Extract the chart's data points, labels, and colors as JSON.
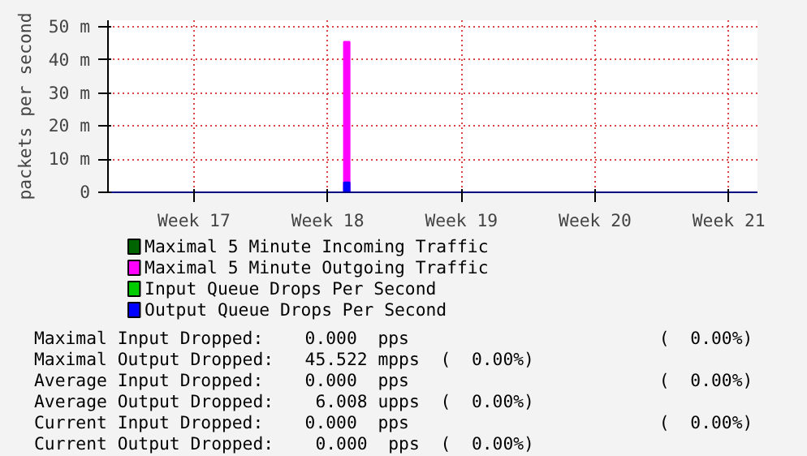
{
  "chart_data": {
    "type": "bar",
    "ylabel": "packets per second",
    "categories": [
      null,
      null,
      null,
      null,
      "Week 17",
      null,
      null,
      null,
      null,
      null,
      null,
      "Week 18",
      null,
      null,
      null,
      null,
      null,
      null,
      "Week 19",
      null,
      null,
      null,
      null,
      null,
      null,
      "Week 20",
      null,
      null,
      null,
      null,
      null,
      null,
      "Week 21",
      null
    ],
    "series": [
      {
        "name": "Maximal 5 Minute Incoming Traffic",
        "color": "#006400",
        "values": [
          0,
          0,
          0,
          0,
          0,
          0,
          0,
          0,
          0,
          0,
          0,
          0,
          0,
          0,
          0,
          0,
          0,
          0,
          0,
          0,
          0,
          0,
          0,
          0,
          0,
          0,
          0,
          0,
          0,
          0,
          0,
          0,
          0,
          0
        ]
      },
      {
        "name": "Maximal 5 Minute Outgoing Traffic",
        "color": "#ff00ff",
        "values": [
          0,
          0,
          0,
          0,
          0,
          0,
          0,
          0,
          0,
          0,
          0,
          0,
          45.5,
          0,
          0,
          0,
          0,
          0,
          0,
          0,
          0,
          0,
          0,
          0,
          0,
          0,
          0,
          0,
          0,
          0,
          0,
          0,
          0,
          0
        ]
      },
      {
        "name": "Input Queue Drops Per Second",
        "color": "#00cc00",
        "values": [
          0,
          0,
          0,
          0,
          0,
          0,
          0,
          0,
          0,
          0,
          0,
          0,
          0,
          0,
          0,
          0,
          0,
          0,
          0,
          0,
          0,
          0,
          0,
          0,
          0,
          0,
          0,
          0,
          0,
          0,
          0,
          0,
          0,
          0
        ]
      },
      {
        "name": "Output Queue Drops Per Second",
        "color": "#0000ff",
        "values": [
          0,
          0,
          0,
          0,
          0,
          0,
          0,
          0,
          0,
          0,
          0,
          0,
          3,
          0,
          0,
          0,
          0,
          0,
          0,
          0,
          0,
          0,
          0,
          0,
          0,
          0,
          0,
          0,
          0,
          0,
          0,
          0,
          0,
          0
        ]
      }
    ],
    "ylim": [
      0,
      52
    ],
    "yticks": [
      0,
      {
        "value": 10,
        "label": "10 m"
      },
      {
        "value": 20,
        "label": "20 m"
      },
      {
        "value": 30,
        "label": "30 m"
      },
      {
        "value": 40,
        "label": "40 m"
      },
      {
        "value": 50,
        "label": "50 m"
      }
    ],
    "grid": true,
    "legend": "bottom",
    "annotations": [
      "Maximal Input Dropped:    0.000  pps                        (  0.00%)",
      "Maximal Output Dropped:   45.522 mpps  (  0.00%)",
      "Average Input Dropped:    0.000  pps                        (  0.00%)",
      "Average Output Dropped:    6.008 upps  (  0.00%)",
      "Current Input Dropped:    0.000  pps                        (  0.00%)",
      "Current Output Dropped:    0.000  pps  (  0.00%)"
    ]
  }
}
